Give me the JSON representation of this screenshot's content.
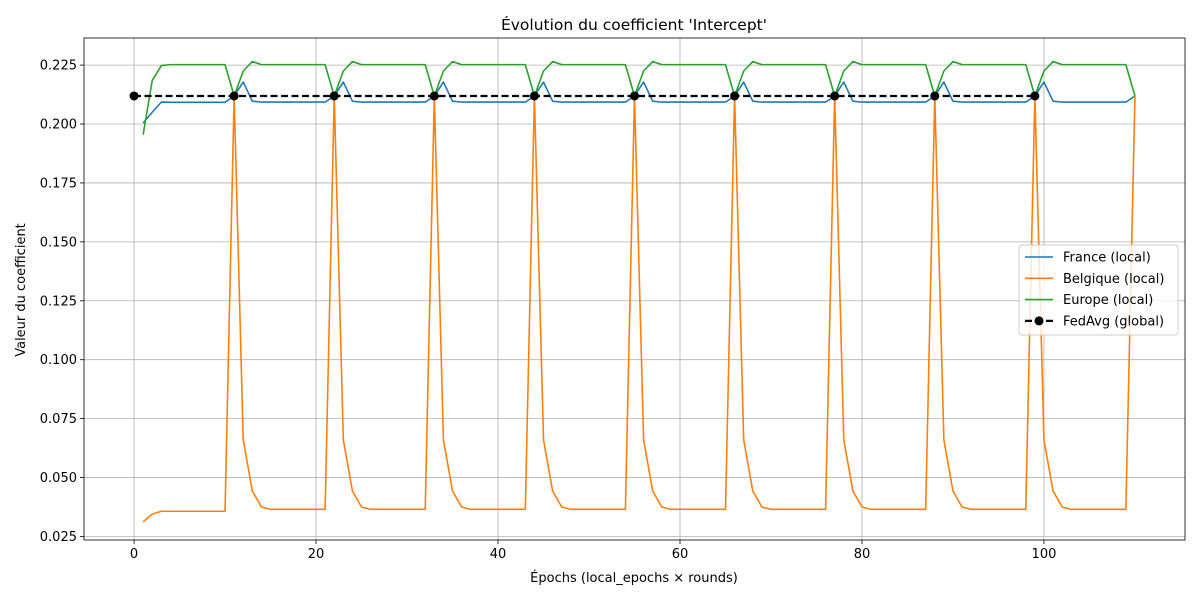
{
  "chart_data": {
    "type": "line",
    "title": "Évolution du coefficient 'Intercept'",
    "xlabel": "Épochs (local_epochs × rounds)",
    "ylabel": "Valeur du coefficient",
    "xlim": [
      -5.5,
      115.5
    ],
    "ylim": [
      0.0235,
      0.2365
    ],
    "xticks": [
      0,
      20,
      40,
      60,
      80,
      100
    ],
    "yticks": [
      0.025,
      0.05,
      0.075,
      0.1,
      0.125,
      0.15,
      0.175,
      0.2,
      0.225
    ],
    "xtick_labels": [
      "0",
      "20",
      "40",
      "60",
      "80",
      "100"
    ],
    "ytick_labels": [
      "0.025",
      "0.050",
      "0.075",
      "0.100",
      "0.125",
      "0.150",
      "0.175",
      "0.200",
      "0.225"
    ],
    "grid": true,
    "legend_position": "right",
    "series": [
      {
        "name": "France (local)",
        "color": "#1f77b4",
        "style": "solid",
        "x": [
          1,
          2,
          3,
          4,
          5,
          6,
          7,
          8,
          9,
          10,
          11,
          12,
          13,
          14,
          15,
          16,
          17,
          18,
          19,
          20,
          21,
          22,
          23,
          24,
          25,
          26,
          27,
          28,
          29,
          30,
          31,
          32,
          33,
          34,
          35,
          36,
          37,
          38,
          39,
          40,
          41,
          42,
          43,
          44,
          45,
          46,
          47,
          48,
          49,
          50,
          51,
          52,
          53,
          54,
          55,
          56,
          57,
          58,
          59,
          60,
          61,
          62,
          63,
          64,
          65,
          66,
          67,
          68,
          69,
          70,
          71,
          72,
          73,
          74,
          75,
          76,
          77,
          78,
          79,
          80,
          81,
          82,
          83,
          84,
          85,
          86,
          87,
          88,
          89,
          90,
          91,
          92,
          93,
          94,
          95,
          96,
          97,
          98,
          99,
          100,
          101,
          102,
          103,
          104,
          105,
          106,
          107,
          108,
          109,
          110
        ],
        "values": [
          0.2005,
          0.205,
          0.2093,
          0.2092,
          0.2092,
          0.2092,
          0.2092,
          0.2092,
          0.2092,
          0.2092,
          0.2119,
          0.2178,
          0.2097,
          0.2093,
          0.2093,
          0.2093,
          0.2093,
          0.2093,
          0.2093,
          0.2093,
          0.2093,
          0.2119,
          0.2178,
          0.2097,
          0.2093,
          0.2093,
          0.2093,
          0.2093,
          0.2093,
          0.2093,
          0.2093,
          0.2093,
          0.2119,
          0.2178,
          0.2097,
          0.2093,
          0.2093,
          0.2093,
          0.2093,
          0.2093,
          0.2093,
          0.2093,
          0.2093,
          0.2119,
          0.2178,
          0.2097,
          0.2093,
          0.2093,
          0.2093,
          0.2093,
          0.2093,
          0.2093,
          0.2093,
          0.2093,
          0.2119,
          0.2178,
          0.2097,
          0.2093,
          0.2093,
          0.2093,
          0.2093,
          0.2093,
          0.2093,
          0.2093,
          0.2093,
          0.2119,
          0.2178,
          0.2097,
          0.2093,
          0.2093,
          0.2093,
          0.2093,
          0.2093,
          0.2093,
          0.2093,
          0.2093,
          0.2119,
          0.2178,
          0.2097,
          0.2093,
          0.2093,
          0.2093,
          0.2093,
          0.2093,
          0.2093,
          0.2093,
          0.2093,
          0.2119,
          0.2178,
          0.2097,
          0.2093,
          0.2093,
          0.2093,
          0.2093,
          0.2093,
          0.2093,
          0.2093,
          0.2093,
          0.2119,
          0.2178,
          0.2097,
          0.2093,
          0.2093,
          0.2093,
          0.2093,
          0.2093,
          0.2093,
          0.2093,
          0.2093,
          0.2119
        ]
      },
      {
        "name": "Belgique (local)",
        "color": "#ff7f0e",
        "style": "solid",
        "x": [
          1,
          2,
          3,
          4,
          5,
          6,
          7,
          8,
          9,
          10,
          11,
          12,
          13,
          14,
          15,
          16,
          17,
          18,
          19,
          20,
          21,
          22,
          23,
          24,
          25,
          26,
          27,
          28,
          29,
          30,
          31,
          32,
          33,
          34,
          35,
          36,
          37,
          38,
          39,
          40,
          41,
          42,
          43,
          44,
          45,
          46,
          47,
          48,
          49,
          50,
          51,
          52,
          53,
          54,
          55,
          56,
          57,
          58,
          59,
          60,
          61,
          62,
          63,
          64,
          65,
          66,
          67,
          68,
          69,
          70,
          71,
          72,
          73,
          74,
          75,
          76,
          77,
          78,
          79,
          80,
          81,
          82,
          83,
          84,
          85,
          86,
          87,
          88,
          89,
          90,
          91,
          92,
          93,
          94,
          95,
          96,
          97,
          98,
          99,
          100,
          101,
          102,
          103,
          104,
          105,
          106,
          107,
          108,
          109,
          110
        ],
        "values": [
          0.0312,
          0.0345,
          0.0357,
          0.0357,
          0.0357,
          0.0357,
          0.0357,
          0.0357,
          0.0357,
          0.0357,
          0.2119,
          0.066,
          0.0443,
          0.0375,
          0.0365,
          0.0365,
          0.0365,
          0.0365,
          0.0365,
          0.0365,
          0.0365,
          0.2119,
          0.066,
          0.0443,
          0.0375,
          0.0365,
          0.0365,
          0.0365,
          0.0365,
          0.0365,
          0.0365,
          0.0365,
          0.2119,
          0.066,
          0.0443,
          0.0375,
          0.0365,
          0.0365,
          0.0365,
          0.0365,
          0.0365,
          0.0365,
          0.0365,
          0.2119,
          0.066,
          0.0443,
          0.0375,
          0.0365,
          0.0365,
          0.0365,
          0.0365,
          0.0365,
          0.0365,
          0.0365,
          0.2119,
          0.066,
          0.0443,
          0.0375,
          0.0365,
          0.0365,
          0.0365,
          0.0365,
          0.0365,
          0.0365,
          0.0365,
          0.2119,
          0.066,
          0.0443,
          0.0375,
          0.0365,
          0.0365,
          0.0365,
          0.0365,
          0.0365,
          0.0365,
          0.0365,
          0.2119,
          0.066,
          0.0443,
          0.0375,
          0.0365,
          0.0365,
          0.0365,
          0.0365,
          0.0365,
          0.0365,
          0.0365,
          0.2119,
          0.066,
          0.0443,
          0.0375,
          0.0365,
          0.0365,
          0.0365,
          0.0365,
          0.0365,
          0.0365,
          0.0365,
          0.2119,
          0.066,
          0.0443,
          0.0375,
          0.0365,
          0.0365,
          0.0365,
          0.0365,
          0.0365,
          0.0365,
          0.0365,
          0.2119
        ]
      },
      {
        "name": "Europe (local)",
        "color": "#2ca02c",
        "style": "solid",
        "x": [
          1,
          2,
          3,
          4,
          5,
          6,
          7,
          8,
          9,
          10,
          11,
          12,
          13,
          14,
          15,
          16,
          17,
          18,
          19,
          20,
          21,
          22,
          23,
          24,
          25,
          26,
          27,
          28,
          29,
          30,
          31,
          32,
          33,
          34,
          35,
          36,
          37,
          38,
          39,
          40,
          41,
          42,
          43,
          44,
          45,
          46,
          47,
          48,
          49,
          50,
          51,
          52,
          53,
          54,
          55,
          56,
          57,
          58,
          59,
          60,
          61,
          62,
          63,
          64,
          65,
          66,
          67,
          68,
          69,
          70,
          71,
          72,
          73,
          74,
          75,
          76,
          77,
          78,
          79,
          80,
          81,
          82,
          83,
          84,
          85,
          86,
          87,
          88,
          89,
          90,
          91,
          92,
          93,
          94,
          95,
          96,
          97,
          98,
          99,
          100,
          101,
          102,
          103,
          104,
          105,
          106,
          107,
          108,
          109,
          110
        ],
        "values": [
          0.1955,
          0.2185,
          0.2248,
          0.2252,
          0.2252,
          0.2252,
          0.2252,
          0.2252,
          0.2252,
          0.2252,
          0.2119,
          0.2225,
          0.2265,
          0.2252,
          0.2252,
          0.2252,
          0.2252,
          0.2252,
          0.2252,
          0.2252,
          0.2252,
          0.2119,
          0.2225,
          0.2265,
          0.2252,
          0.2252,
          0.2252,
          0.2252,
          0.2252,
          0.2252,
          0.2252,
          0.2252,
          0.2119,
          0.2225,
          0.2265,
          0.2252,
          0.2252,
          0.2252,
          0.2252,
          0.2252,
          0.2252,
          0.2252,
          0.2252,
          0.2119,
          0.2225,
          0.2265,
          0.2252,
          0.2252,
          0.2252,
          0.2252,
          0.2252,
          0.2252,
          0.2252,
          0.2252,
          0.2119,
          0.2225,
          0.2265,
          0.2252,
          0.2252,
          0.2252,
          0.2252,
          0.2252,
          0.2252,
          0.2252,
          0.2252,
          0.2119,
          0.2225,
          0.2265,
          0.2252,
          0.2252,
          0.2252,
          0.2252,
          0.2252,
          0.2252,
          0.2252,
          0.2252,
          0.2119,
          0.2225,
          0.2265,
          0.2252,
          0.2252,
          0.2252,
          0.2252,
          0.2252,
          0.2252,
          0.2252,
          0.2252,
          0.2119,
          0.2225,
          0.2265,
          0.2252,
          0.2252,
          0.2252,
          0.2252,
          0.2252,
          0.2252,
          0.2252,
          0.2252,
          0.2119,
          0.2225,
          0.2265,
          0.2252,
          0.2252,
          0.2252,
          0.2252,
          0.2252,
          0.2252,
          0.2252,
          0.2252,
          0.2119
        ]
      },
      {
        "name": "FedAvg (global)",
        "color": "#000000",
        "style": "dashed",
        "marker": "circle",
        "x": [
          0,
          11,
          22,
          33,
          44,
          55,
          66,
          77,
          88,
          99
        ],
        "values": [
          0.2119,
          0.2119,
          0.2119,
          0.2119,
          0.2119,
          0.2119,
          0.2119,
          0.2119,
          0.2119,
          0.2119
        ]
      }
    ]
  }
}
